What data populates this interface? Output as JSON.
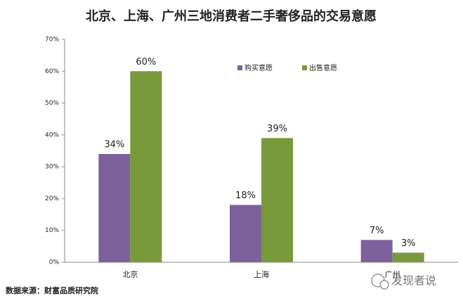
{
  "chart_data": {
    "type": "bar",
    "title": "北京、上海、广州三地消费者二手奢侈品的交易意愿",
    "categories": [
      "北京",
      "上海",
      "广州"
    ],
    "series": [
      {
        "name": "购买意愿",
        "color": "#7d619c",
        "values": [
          34,
          18,
          7
        ],
        "value_labels": [
          "34%",
          "18%",
          "7%"
        ]
      },
      {
        "name": "出售意愿",
        "color": "#789a3a",
        "values": [
          60,
          39,
          3
        ],
        "value_labels": [
          "60%",
          "39%",
          "3%"
        ]
      }
    ],
    "ylim": [
      0,
      70
    ],
    "yticks": [
      {
        "value": 0,
        "label": "0%"
      },
      {
        "value": 10,
        "label": "10%"
      },
      {
        "value": 20,
        "label": "20%"
      },
      {
        "value": 30,
        "label": "30%"
      },
      {
        "value": 40,
        "label": "40%"
      },
      {
        "value": 50,
        "label": "50%"
      },
      {
        "value": 60,
        "label": "60%"
      },
      {
        "value": 70,
        "label": "70%"
      }
    ],
    "source": "数据来源：财富品质研究院",
    "watermark": "发现者说"
  }
}
